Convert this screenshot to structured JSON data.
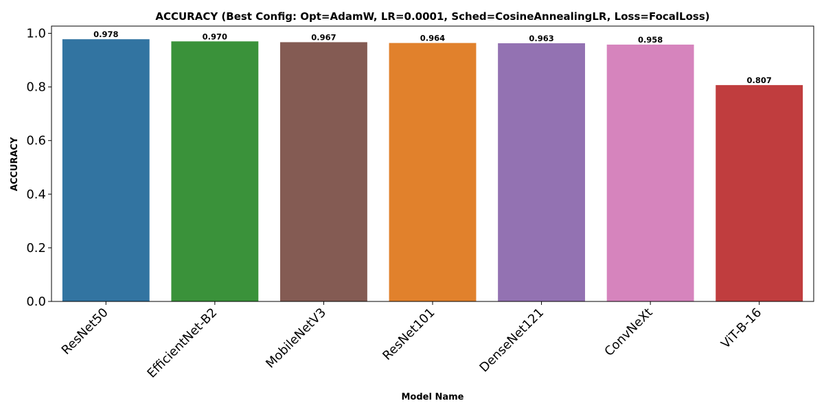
{
  "chart_data": {
    "type": "bar",
    "title": "ACCURACY (Best Config: Opt=AdamW, LR=0.0001, Sched=CosineAnnealingLR, Loss=FocalLoss)",
    "xlabel": "Model Name",
    "ylabel": "ACCURACY",
    "categories": [
      "ResNet50",
      "EfficientNet-B2",
      "MobileNetV3",
      "ResNet101",
      "DenseNet121",
      "ConvNeXt",
      "ViT-B-16"
    ],
    "values": [
      0.978,
      0.97,
      0.967,
      0.964,
      0.963,
      0.958,
      0.807
    ],
    "value_labels": [
      "0.978",
      "0.970",
      "0.967",
      "0.964",
      "0.963",
      "0.958",
      "0.807"
    ],
    "colors": [
      "#3274a1",
      "#3a923a",
      "#845b53",
      "#e1812c",
      "#9372b2",
      "#d684bd",
      "#c03d3e"
    ],
    "ylim": [
      0,
      1.027
    ],
    "yticks": [
      0.0,
      0.2,
      0.4,
      0.6,
      0.8,
      1.0
    ],
    "ytick_labels": [
      "0.0",
      "0.2",
      "0.4",
      "0.6",
      "0.8",
      "1.0"
    ],
    "grid": false,
    "legend": "none"
  }
}
